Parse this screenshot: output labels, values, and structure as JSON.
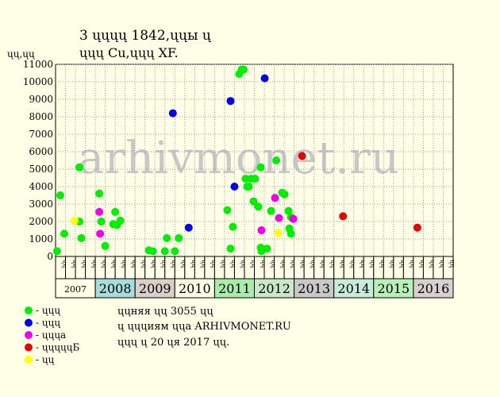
{
  "chart_data": {
    "type": "scatter",
    "title_line1": "3 ųųųų 1842,ųųы ų",
    "title_line2": "ųųų Cu,ųųų XF.",
    "ylabel": "ųų,ųų",
    "watermark": "arhivmonet.ru",
    "ylim": [
      0,
      11000
    ],
    "yticks": [
      0,
      1000,
      2000,
      3000,
      4000,
      5000,
      6000,
      7000,
      8000,
      9000,
      10000,
      11000
    ],
    "x_unit": "years",
    "xlim": [
      2007.0,
      2016.0
    ],
    "half_label_first": "ųų",
    "half_label_second": "ųų",
    "years": [
      {
        "label": "2007",
        "color": "#ffffe8",
        "small": true
      },
      {
        "label": "2008",
        "color": "#a8dcdc"
      },
      {
        "label": "2009",
        "color": "#d8d0c8"
      },
      {
        "label": "2010",
        "color": "#ffffe8"
      },
      {
        "label": "2011",
        "color": "#a8eca8"
      },
      {
        "label": "2012",
        "color": "#c8e8c8"
      },
      {
        "label": "2013",
        "color": "#c8c8c8"
      },
      {
        "label": "2014",
        "color": "#c8ecd8"
      },
      {
        "label": "2015",
        "color": "#b8f0b8"
      },
      {
        "label": "2016",
        "color": "#d8d0cc"
      }
    ],
    "series": [
      {
        "name": "- ųųų",
        "color": "#00ee00",
        "points": [
          [
            2007.04,
            300
          ],
          [
            2007.12,
            3500
          ],
          [
            2007.22,
            1300
          ],
          [
            2007.6,
            2000
          ],
          [
            2007.6,
            5100
          ],
          [
            2007.65,
            1050
          ],
          [
            2008.1,
            3600
          ],
          [
            2008.15,
            2000
          ],
          [
            2008.25,
            600
          ],
          [
            2008.45,
            1850
          ],
          [
            2008.5,
            2550
          ],
          [
            2008.55,
            1800
          ],
          [
            2008.63,
            2050
          ],
          [
            2009.35,
            350
          ],
          [
            2009.45,
            300
          ],
          [
            2009.75,
            300
          ],
          [
            2009.8,
            1050
          ],
          [
            2010.0,
            300
          ],
          [
            2010.1,
            1050
          ],
          [
            2011.32,
            2650
          ],
          [
            2011.4,
            450
          ],
          [
            2011.46,
            1700
          ],
          [
            2011.62,
            10450
          ],
          [
            2011.68,
            10700
          ],
          [
            2011.73,
            10700
          ],
          [
            2011.78,
            4450
          ],
          [
            2011.82,
            4000
          ],
          [
            2011.86,
            4000
          ],
          [
            2011.92,
            4450
          ],
          [
            2011.98,
            3150
          ],
          [
            2012.02,
            4450
          ],
          [
            2012.1,
            2850
          ],
          [
            2012.16,
            5100
          ],
          [
            2012.16,
            500
          ],
          [
            2012.18,
            300
          ],
          [
            2012.32,
            450
          ],
          [
            2012.42,
            2600
          ],
          [
            2012.55,
            5500
          ],
          [
            2012.7,
            3650
          ],
          [
            2012.76,
            3550
          ],
          [
            2012.86,
            2600
          ],
          [
            2012.88,
            1600
          ],
          [
            2012.92,
            2250
          ],
          [
            2012.92,
            1300
          ]
        ]
      },
      {
        "name": "- ųųų",
        "color": "#0000ee",
        "points": [
          [
            2009.95,
            8200
          ],
          [
            2010.35,
            1650
          ],
          [
            2011.4,
            8900
          ],
          [
            2011.5,
            4000
          ],
          [
            2012.26,
            10200
          ]
        ]
      },
      {
        "name": "- ųųųa",
        "color": "#ee00ee",
        "points": [
          [
            2008.1,
            2550
          ],
          [
            2008.12,
            1300
          ],
          [
            2012.18,
            1500
          ],
          [
            2012.52,
            3350
          ],
          [
            2012.62,
            2200
          ],
          [
            2012.98,
            2150
          ]
        ]
      },
      {
        "name": "- ųųųųųБ",
        "color": "#ee0000",
        "points": [
          [
            2013.2,
            5750
          ],
          [
            2014.23,
            2300
          ],
          [
            2016.1,
            1650
          ]
        ]
      },
      {
        "name": "- ųų",
        "color": "#ffff00",
        "points": [
          [
            2007.48,
            2050
          ],
          [
            2012.6,
            1350
          ]
        ]
      }
    ]
  },
  "footer": {
    "line1": "ųųняя ųų 3055 ųų",
    "line2": "ų ųųųиям ųųa ARHIVMONET.RU",
    "line3": "ųųų ų 20 ųя 2017 ųų."
  }
}
